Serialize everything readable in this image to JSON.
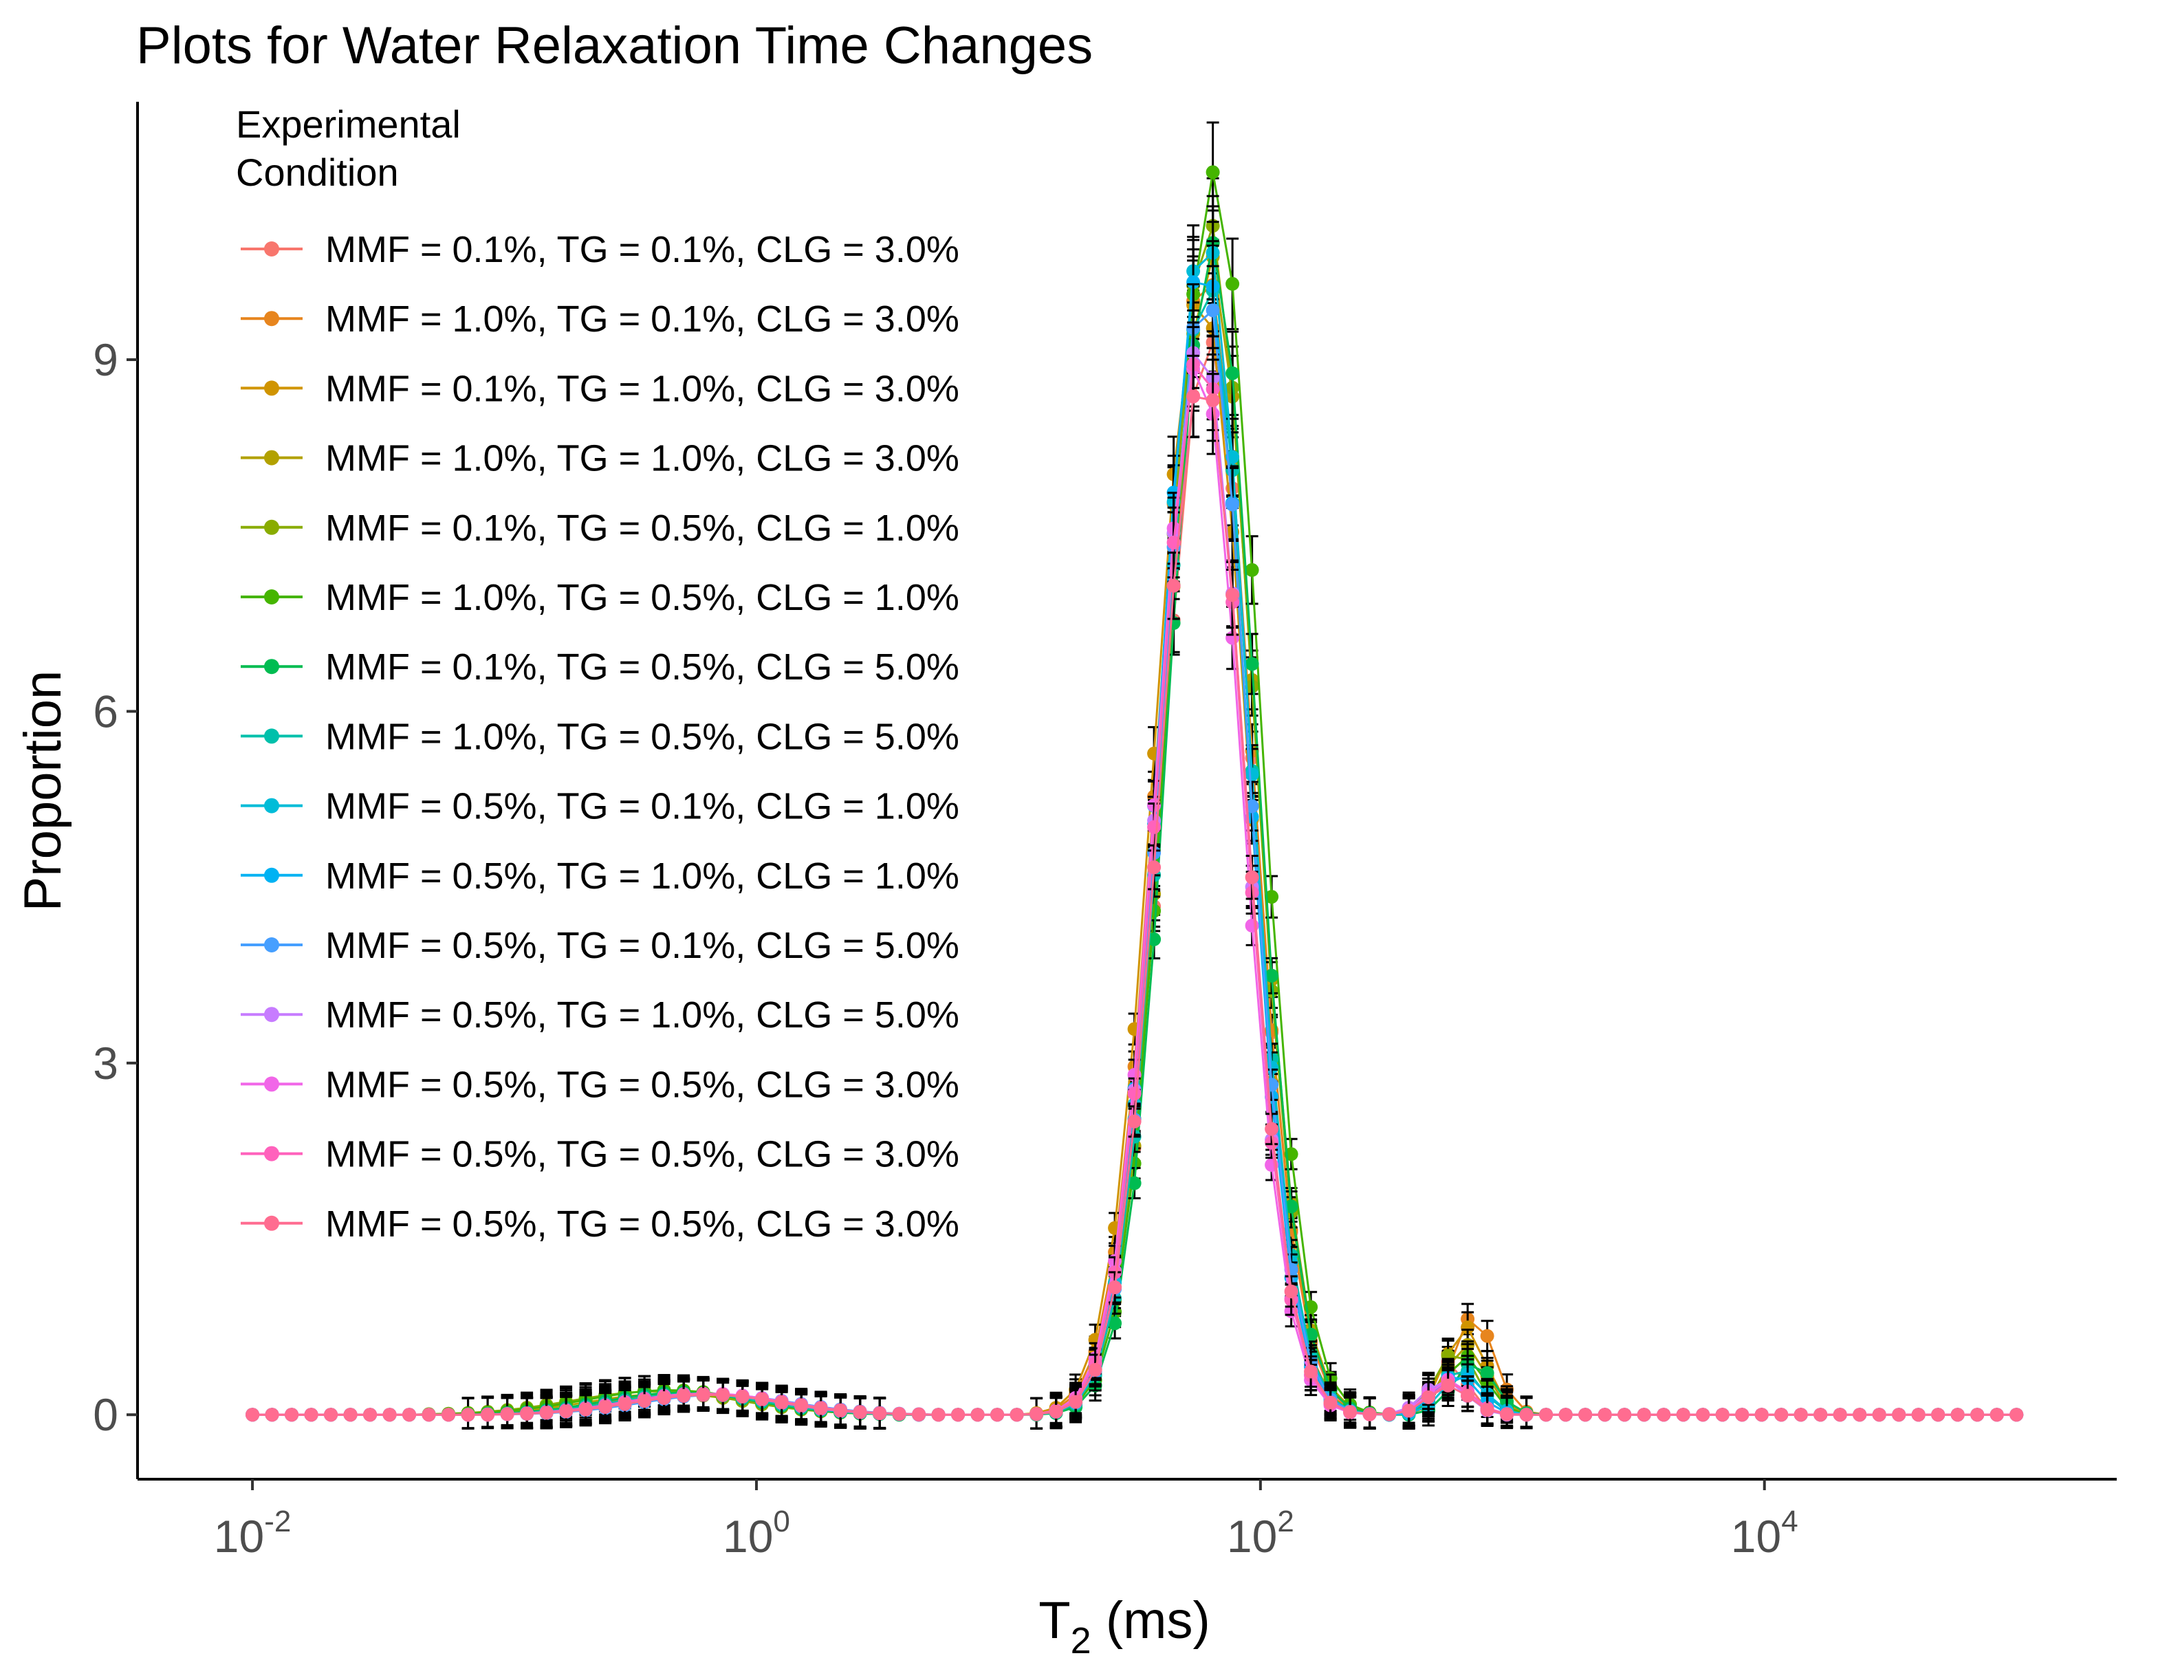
{
  "chart_data": {
    "type": "line",
    "title": "Plots for Water Relaxation Time Changes",
    "xlabel": {
      "base": "T",
      "subscript": "2",
      "rest": " (ms)"
    },
    "ylabel": "Proportion",
    "x_scale": "log10",
    "xlim": [
      0.0035,
      250000
    ],
    "ylim": [
      -0.55,
      11.2
    ],
    "x_ticks": [
      {
        "value": 0.01,
        "base": "10",
        "exp": "-2"
      },
      {
        "value": 1,
        "base": "10",
        "exp": "0"
      },
      {
        "value": 100,
        "base": "10",
        "exp": "2"
      },
      {
        "value": 10000,
        "base": "10",
        "exp": "4"
      }
    ],
    "y_ticks": [
      {
        "value": 0,
        "label": "0"
      },
      {
        "value": 3,
        "label": "3"
      },
      {
        "value": 6,
        "label": "6"
      },
      {
        "value": 9,
        "label": "9"
      }
    ],
    "x_range": [
      0.01,
      100000
    ],
    "legend": {
      "title_lines": [
        "Experimental",
        "Condition"
      ],
      "position": "top-left inside"
    },
    "series": [
      {
        "name": "MMF = 0.1%, TG = 0.1%, CLG = 3.0%",
        "color": "#F8766D",
        "peaks": [
          {
            "center": 0.55,
            "width": 0.3,
            "height": 0.18
          },
          {
            "center": 62,
            "width": 0.175,
            "height": 9.2
          },
          {
            "center": 560,
            "width": 0.07,
            "height": 0.45
          }
        ]
      },
      {
        "name": "MMF = 1.0%, TG = 0.1%, CLG = 3.0%",
        "color": "#E7851E",
        "peaks": [
          {
            "center": 0.6,
            "width": 0.3,
            "height": 0.17
          },
          {
            "center": 60,
            "width": 0.18,
            "height": 9.8
          },
          {
            "center": 700,
            "width": 0.08,
            "height": 0.85
          }
        ]
      },
      {
        "name": "MMF = 0.1%, TG = 1.0%, CLG = 3.0%",
        "color": "#D09400",
        "peaks": [
          {
            "center": 0.5,
            "width": 0.31,
            "height": 0.17
          },
          {
            "center": 58,
            "width": 0.18,
            "height": 9.6
          },
          {
            "center": 650,
            "width": 0.08,
            "height": 0.75
          }
        ]
      },
      {
        "name": "MMF = 1.0%, TG = 1.0%, CLG = 3.0%",
        "color": "#B2A100",
        "peaks": [
          {
            "center": 0.45,
            "width": 0.32,
            "height": 0.18
          },
          {
            "center": 63,
            "width": 0.175,
            "height": 9.9
          },
          {
            "center": 650,
            "width": 0.08,
            "height": 0.6
          }
        ]
      },
      {
        "name": "MMF = 0.1%, TG = 0.5%, CLG = 1.0%",
        "color": "#89AC00",
        "peaks": [
          {
            "center": 0.4,
            "width": 0.33,
            "height": 0.2
          },
          {
            "center": 62,
            "width": 0.175,
            "height": 10.2
          },
          {
            "center": 600,
            "width": 0.08,
            "height": 0.55
          }
        ]
      },
      {
        "name": "MMF = 1.0%, TG = 0.5%, CLG = 1.0%",
        "color": "#45B500",
        "peaks": [
          {
            "center": 0.45,
            "width": 0.33,
            "height": 0.21
          },
          {
            "center": 65,
            "width": 0.175,
            "height": 10.6
          },
          {
            "center": 650,
            "width": 0.08,
            "height": 0.5
          }
        ]
      },
      {
        "name": "MMF = 0.1%, TG = 0.5%, CLG = 5.0%",
        "color": "#00BC51",
        "peaks": [
          {
            "center": 0.5,
            "width": 0.3,
            "height": 0.19
          },
          {
            "center": 64,
            "width": 0.17,
            "height": 10.0
          },
          {
            "center": 700,
            "width": 0.08,
            "height": 0.45
          }
        ]
      },
      {
        "name": "MMF = 1.0%, TG = 0.5%, CLG = 5.0%",
        "color": "#00C0AB",
        "peaks": [
          {
            "center": 0.55,
            "width": 0.3,
            "height": 0.18
          },
          {
            "center": 61,
            "width": 0.17,
            "height": 9.7
          },
          {
            "center": 620,
            "width": 0.08,
            "height": 0.4
          }
        ]
      },
      {
        "name": "MMF = 0.5%, TG = 0.1%, CLG = 1.0%",
        "color": "#00BCD8",
        "peaks": [
          {
            "center": 0.6,
            "width": 0.3,
            "height": 0.18
          },
          {
            "center": 60,
            "width": 0.17,
            "height": 10.1
          },
          {
            "center": 640,
            "width": 0.08,
            "height": 0.35
          }
        ]
      },
      {
        "name": "MMF = 0.5%, TG = 1.0%, CLG = 1.0%",
        "color": "#00B2F3",
        "peaks": [
          {
            "center": 0.6,
            "width": 0.3,
            "height": 0.18
          },
          {
            "center": 59,
            "width": 0.17,
            "height": 9.9
          },
          {
            "center": 600,
            "width": 0.08,
            "height": 0.35
          }
        ]
      },
      {
        "name": "MMF = 0.5%, TG = 0.1%, CLG = 5.0%",
        "color": "#469FFF",
        "peaks": [
          {
            "center": 0.7,
            "width": 0.3,
            "height": 0.17
          },
          {
            "center": 60,
            "width": 0.17,
            "height": 9.6
          },
          {
            "center": 560,
            "width": 0.08,
            "height": 0.3
          }
        ]
      },
      {
        "name": "MMF = 0.5%, TG = 1.0%, CLG = 5.0%",
        "color": "#C77CFF",
        "peaks": [
          {
            "center": 0.65,
            "width": 0.3,
            "height": 0.18
          },
          {
            "center": 58,
            "width": 0.17,
            "height": 9.2
          },
          {
            "center": 540,
            "width": 0.08,
            "height": 0.3
          }
        ]
      },
      {
        "name": "MMF = 0.5%, TG = 0.5%, CLG = 3.0%",
        "color": "#F166E8",
        "peaks": [
          {
            "center": 0.65,
            "width": 0.3,
            "height": 0.18
          },
          {
            "center": 57,
            "width": 0.17,
            "height": 9.0
          },
          {
            "center": 560,
            "width": 0.08,
            "height": 0.3
          }
        ]
      },
      {
        "name": "MMF = 0.5%, TG = 0.5%, CLG = 3.0%",
        "color": "#FF62BC",
        "peaks": [
          {
            "center": 0.6,
            "width": 0.3,
            "height": 0.18
          },
          {
            "center": 58,
            "width": 0.17,
            "height": 9.1
          },
          {
            "center": 570,
            "width": 0.08,
            "height": 0.28
          }
        ]
      },
      {
        "name": "MMF = 0.5%, TG = 0.5%, CLG = 3.0%",
        "color": "#FF6C90",
        "peaks": [
          {
            "center": 0.65,
            "width": 0.3,
            "height": 0.17
          },
          {
            "center": 59,
            "width": 0.17,
            "height": 8.9
          },
          {
            "center": 560,
            "width": 0.08,
            "height": 0.25
          }
        ]
      }
    ]
  }
}
